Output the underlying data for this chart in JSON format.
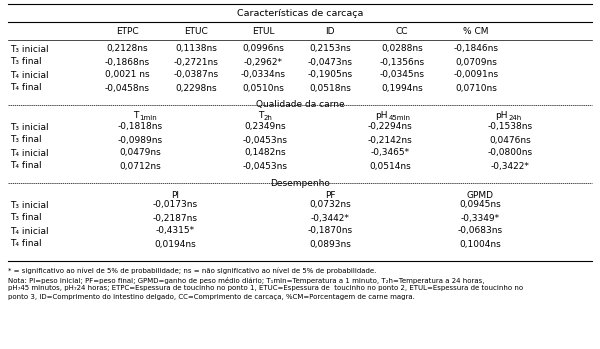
{
  "title_main": "Características de carcaça",
  "section1_header": [
    "",
    "ETPC",
    "ETUC",
    "ETUL",
    "ID",
    "CC",
    "% CM"
  ],
  "section1_rows": [
    [
      "T₃ inicial",
      "0,2128ns",
      "0,1138ns",
      "0,0996ns",
      "0,2153ns",
      "0,0288ns",
      "-0,1846ns"
    ],
    [
      "T₃ final",
      "-0,1868ns",
      "-0,2721ns",
      "-0,2962*",
      "-0,0473ns",
      "-0,1356ns",
      "0,0709ns"
    ],
    [
      "T₄ inicial",
      "0,0021 ns",
      "-0,0387ns",
      "-0,0334ns",
      "-0,1905ns",
      "-0,0345ns",
      "-0,0091ns"
    ],
    [
      "T₄ final",
      "-0,0458ns",
      "0,2298ns",
      "0,0510ns",
      "0,0518ns",
      "0,1994ns",
      "0,0710ns"
    ]
  ],
  "section2_title": "Qualidade da carne",
  "section2_rows": [
    [
      "T₃ inicial",
      "-0,1818ns",
      "0,2349ns",
      "-0,2294ns",
      "-0,1538ns"
    ],
    [
      "T₃ final",
      "-0,0989ns",
      "-0,0453ns",
      "-0,2142ns",
      "0,0476ns"
    ],
    [
      "T₄ inicial",
      "0,0479ns",
      "0,1482ns",
      "-0,3465*",
      "-0,0800ns"
    ],
    [
      "T₄ final",
      "0,0712ns",
      "-0,0453ns",
      "0,0514ns",
      "-0,3422*"
    ]
  ],
  "section3_title": "Desempenho",
  "section3_header": [
    "PI",
    "PF",
    "GPMD"
  ],
  "section3_rows": [
    [
      "T₃ inicial",
      "-0,0173ns",
      "0,0732ns",
      "0,0945ns"
    ],
    [
      "T₃ final",
      "-0,2187ns",
      "-0,3442*",
      "-0,3349*"
    ],
    [
      "T₄ inicial",
      "-0,4315*",
      "-0,1870ns",
      "-0,0683ns"
    ],
    [
      "T₄ final",
      "0,0194ns",
      "0,0893ns",
      "0,1004ns"
    ]
  ],
  "footnote1": "* = significativo ao nível de 5% de probabilidade; ns = não significativo ao nível de 5% de probabilidade.",
  "footnote2": "Nota: PI=peso inicial; PF=peso final; GPMD=ganho de peso médio diário; T₁min=Temperatura a 1 minuto, T₂h=Temperatura a 24 horas,",
  "footnote3": "pH₇45 minutos, pH₇24 horas; ETPC=Espessura de toucinho no ponto 1, ETUC=Espessura de  toucinho no ponto 2, ETUL=Espessura de toucinho no",
  "footnote4": "ponto 3, ID=Comprimento do intestino delgado, CC=Comprimento de carcaça, %CM=Porcentagem de carne magra.",
  "bg_color": "#ffffff"
}
